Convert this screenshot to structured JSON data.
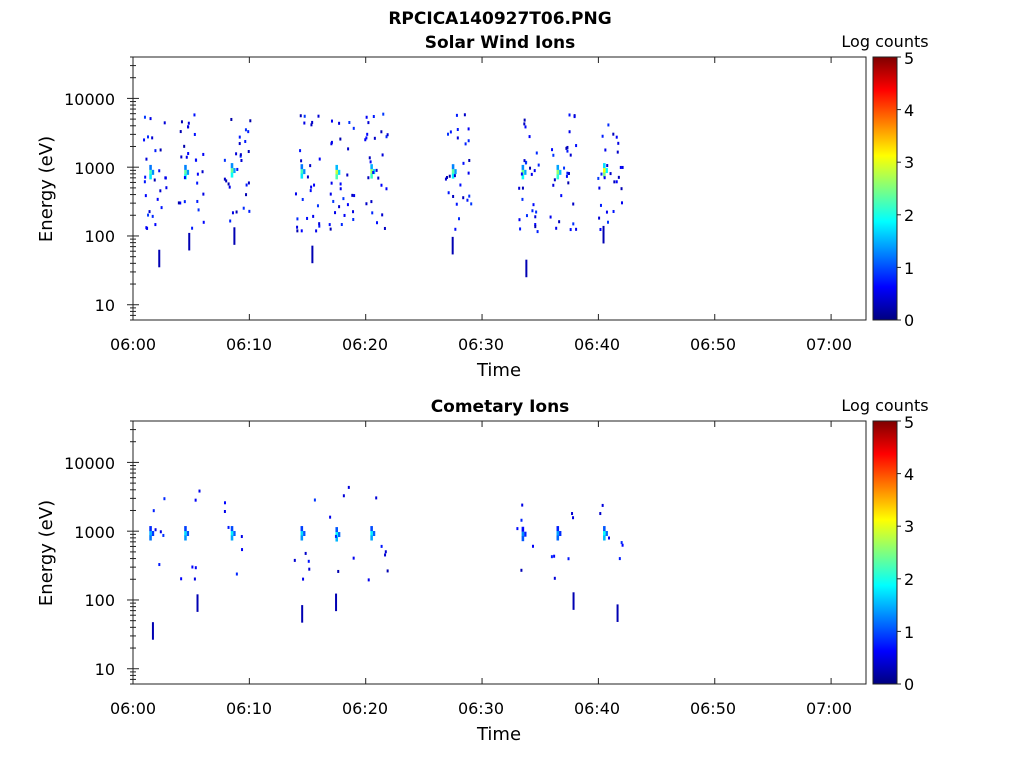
{
  "title": "RPCICA140927T06.PNG",
  "colorscale": {
    "label": "Log counts",
    "min": 0,
    "max": 5,
    "ticks": [
      "0",
      "1",
      "2",
      "3",
      "4",
      "5"
    ],
    "colormap": "jet"
  },
  "chart_data": [
    {
      "type": "heatmap",
      "title": "Solar Wind Ions",
      "xlabel": "Time",
      "ylabel": "Energy (eV)",
      "x_range": [
        "06:00",
        "07:03"
      ],
      "y_range": [
        6,
        40000
      ],
      "y_scale": "log",
      "x_ticks": [
        "06:00",
        "06:10",
        "06:20",
        "06:30",
        "06:40",
        "06:50",
        "07:00"
      ],
      "y_ticks": [
        "10",
        "100",
        "1000",
        "10000"
      ],
      "bursts": [
        {
          "time": "06:01",
          "peak_energy": 800,
          "peak_log_counts": 2.2
        },
        {
          "time": "06:04",
          "peak_energy": 800,
          "peak_log_counts": 2.3
        },
        {
          "time": "06:08",
          "peak_energy": 850,
          "peak_log_counts": 2.4
        },
        {
          "time": "06:14",
          "peak_energy": 820,
          "peak_log_counts": 2.2
        },
        {
          "time": "06:17",
          "peak_energy": 800,
          "peak_log_counts": 2.8
        },
        {
          "time": "06:20",
          "peak_energy": 820,
          "peak_log_counts": 2.7
        },
        {
          "time": "06:27",
          "peak_energy": 820,
          "peak_log_counts": 2.3
        },
        {
          "time": "06:33",
          "peak_energy": 800,
          "peak_log_counts": 2.4
        },
        {
          "time": "06:36",
          "peak_energy": 800,
          "peak_log_counts": 2.6
        },
        {
          "time": "06:40",
          "peak_energy": 850,
          "peak_log_counts": 3.1
        }
      ]
    },
    {
      "type": "heatmap",
      "title": "Cometary Ions",
      "xlabel": "Time",
      "ylabel": "Energy (eV)",
      "x_range": [
        "06:00",
        "07:03"
      ],
      "y_range": [
        6,
        40000
      ],
      "y_scale": "log",
      "x_ticks": [
        "06:00",
        "06:10",
        "06:20",
        "06:30",
        "06:40",
        "06:50",
        "07:00"
      ],
      "y_ticks": [
        "10",
        "100",
        "1000",
        "10000"
      ],
      "bursts": [
        {
          "time": "06:01",
          "peak_energy": 880,
          "peak_log_counts": 1.5
        },
        {
          "time": "06:04",
          "peak_energy": 880,
          "peak_log_counts": 1.7
        },
        {
          "time": "06:08",
          "peak_energy": 880,
          "peak_log_counts": 1.8
        },
        {
          "time": "06:14",
          "peak_energy": 880,
          "peak_log_counts": 1.7
        },
        {
          "time": "06:17",
          "peak_energy": 850,
          "peak_log_counts": 1.9
        },
        {
          "time": "06:20",
          "peak_energy": 880,
          "peak_log_counts": 1.8
        },
        {
          "time": "06:33",
          "peak_energy": 860,
          "peak_log_counts": 1.3
        },
        {
          "time": "06:36",
          "peak_energy": 880,
          "peak_log_counts": 1.4
        },
        {
          "time": "06:40",
          "peak_energy": 880,
          "peak_log_counts": 1.9
        }
      ]
    }
  ]
}
